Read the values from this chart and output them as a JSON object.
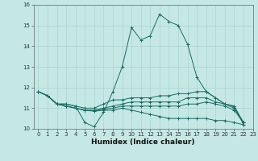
{
  "title": "",
  "xlabel": "Humidex (Indice chaleur)",
  "ylabel": "",
  "bg_color": "#c5e8e5",
  "grid_color": "#aad4d0",
  "line_color": "#1a6b63",
  "xlim": [
    -0.5,
    23
  ],
  "ylim": [
    10.0,
    16.0
  ],
  "yticks": [
    10,
    11,
    12,
    13,
    14,
    15,
    16
  ],
  "xticks": [
    0,
    1,
    2,
    3,
    4,
    5,
    6,
    7,
    8,
    9,
    10,
    11,
    12,
    13,
    14,
    15,
    16,
    17,
    18,
    19,
    20,
    21,
    22,
    23
  ],
  "lines": [
    [
      11.8,
      11.6,
      11.2,
      11.2,
      11.1,
      10.3,
      10.1,
      10.8,
      11.8,
      13.0,
      14.9,
      14.3,
      14.5,
      15.55,
      15.2,
      15.0,
      14.1,
      12.5,
      11.8,
      11.5,
      11.2,
      11.1,
      10.2
    ],
    [
      11.8,
      11.6,
      11.2,
      11.2,
      11.1,
      11.0,
      11.0,
      11.2,
      11.4,
      11.4,
      11.5,
      11.5,
      11.5,
      11.6,
      11.6,
      11.7,
      11.7,
      11.8,
      11.8,
      11.5,
      11.2,
      11.1,
      10.3
    ],
    [
      11.8,
      11.6,
      11.2,
      11.1,
      11.0,
      10.9,
      10.9,
      11.0,
      11.1,
      11.2,
      11.3,
      11.3,
      11.3,
      11.3,
      11.3,
      11.3,
      11.5,
      11.5,
      11.5,
      11.3,
      11.2,
      11.0,
      10.3
    ],
    [
      11.8,
      11.6,
      11.2,
      11.1,
      11.0,
      10.9,
      10.9,
      10.95,
      11.0,
      11.1,
      11.1,
      11.1,
      11.1,
      11.1,
      11.1,
      11.1,
      11.2,
      11.2,
      11.3,
      11.2,
      11.1,
      10.9,
      10.3
    ],
    [
      11.8,
      11.6,
      11.2,
      11.1,
      11.0,
      10.9,
      10.85,
      10.9,
      10.9,
      11.0,
      10.9,
      10.8,
      10.7,
      10.6,
      10.5,
      10.5,
      10.5,
      10.5,
      10.5,
      10.4,
      10.4,
      10.3,
      10.2
    ]
  ],
  "xlabel_fontsize": 6.5,
  "tick_fontsize": 5.0
}
